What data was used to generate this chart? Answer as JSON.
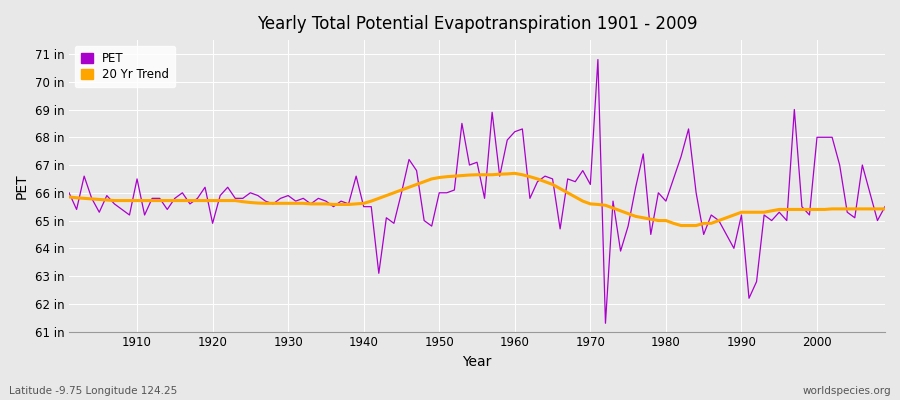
{
  "title": "Yearly Total Potential Evapotranspiration 1901 - 2009",
  "xlabel": "Year",
  "ylabel": "PET",
  "footnote_left": "Latitude -9.75 Longitude 124.25",
  "footnote_right": "worldspecies.org",
  "pet_color": "#AA00CC",
  "trend_color": "#FFA500",
  "bg_color": "#E8E8E8",
  "ylim": [
    61,
    71.5
  ],
  "yticks": [
    61,
    62,
    63,
    64,
    65,
    66,
    67,
    68,
    69,
    70,
    71
  ],
  "ytick_labels": [
    "61 in",
    "62 in",
    "63 in",
    "64 in",
    "65 in",
    "66 in",
    "67 in",
    "68 in",
    "69 in",
    "70 in",
    "71 in"
  ],
  "years": [
    1901,
    1902,
    1903,
    1904,
    1905,
    1906,
    1907,
    1908,
    1909,
    1910,
    1911,
    1912,
    1913,
    1914,
    1915,
    1916,
    1917,
    1918,
    1919,
    1920,
    1921,
    1922,
    1923,
    1924,
    1925,
    1926,
    1927,
    1928,
    1929,
    1930,
    1931,
    1932,
    1933,
    1934,
    1935,
    1936,
    1937,
    1938,
    1939,
    1940,
    1941,
    1942,
    1943,
    1944,
    1945,
    1946,
    1947,
    1948,
    1949,
    1950,
    1951,
    1952,
    1953,
    1954,
    1955,
    1956,
    1957,
    1958,
    1959,
    1960,
    1961,
    1962,
    1963,
    1964,
    1965,
    1966,
    1967,
    1968,
    1969,
    1970,
    1971,
    1972,
    1973,
    1974,
    1975,
    1976,
    1977,
    1978,
    1979,
    1980,
    1981,
    1982,
    1983,
    1984,
    1985,
    1986,
    1987,
    1988,
    1989,
    1990,
    1991,
    1992,
    1993,
    1994,
    1995,
    1996,
    1997,
    1998,
    1999,
    2000,
    2001,
    2002,
    2003,
    2004,
    2005,
    2006,
    2007,
    2008,
    2009
  ],
  "pet": [
    66.0,
    65.4,
    66.6,
    65.8,
    65.3,
    65.9,
    65.6,
    65.4,
    65.2,
    66.5,
    65.2,
    65.8,
    65.8,
    65.4,
    65.8,
    66.0,
    65.6,
    65.8,
    66.2,
    64.9,
    65.9,
    66.2,
    65.8,
    65.8,
    66.0,
    65.9,
    65.7,
    65.6,
    65.8,
    65.9,
    65.7,
    65.8,
    65.6,
    65.8,
    65.7,
    65.5,
    65.7,
    65.6,
    66.6,
    65.5,
    65.5,
    63.1,
    65.1,
    64.9,
    66.0,
    67.2,
    66.8,
    65.0,
    64.8,
    66.0,
    66.0,
    66.1,
    68.5,
    67.0,
    67.1,
    65.8,
    68.9,
    66.6,
    67.9,
    68.2,
    68.3,
    65.8,
    66.4,
    66.6,
    66.5,
    64.7,
    66.5,
    66.4,
    66.8,
    66.3,
    70.8,
    61.3,
    65.7,
    63.9,
    64.8,
    66.2,
    67.4,
    64.5,
    66.0,
    65.7,
    66.5,
    67.3,
    68.3,
    66.0,
    64.5,
    65.2,
    65.0,
    64.5,
    64.0,
    65.2,
    62.2,
    62.8,
    65.2,
    65.0,
    65.3,
    65.0,
    69.0,
    65.5,
    65.2,
    68.0,
    68.0,
    68.0,
    67.0,
    65.3,
    65.1,
    67.0,
    66.0,
    65.0,
    65.5
  ],
  "trend": [
    65.85,
    65.82,
    65.8,
    65.78,
    65.76,
    65.74,
    65.72,
    65.72,
    65.72,
    65.72,
    65.72,
    65.72,
    65.72,
    65.72,
    65.72,
    65.72,
    65.72,
    65.72,
    65.72,
    65.72,
    65.72,
    65.72,
    65.72,
    65.68,
    65.65,
    65.63,
    65.62,
    65.62,
    65.62,
    65.62,
    65.62,
    65.62,
    65.6,
    65.6,
    65.6,
    65.58,
    65.58,
    65.58,
    65.6,
    65.62,
    65.7,
    65.8,
    65.9,
    66.0,
    66.1,
    66.2,
    66.3,
    66.4,
    66.5,
    66.55,
    66.58,
    66.6,
    66.62,
    66.64,
    66.65,
    66.65,
    66.65,
    66.67,
    66.68,
    66.7,
    66.65,
    66.58,
    66.5,
    66.4,
    66.3,
    66.15,
    66.0,
    65.85,
    65.7,
    65.6,
    65.58,
    65.55,
    65.45,
    65.35,
    65.25,
    65.15,
    65.1,
    65.05,
    65.0,
    65.0,
    64.9,
    64.82,
    64.82,
    64.82,
    64.9,
    64.9,
    65.0,
    65.1,
    65.2,
    65.3,
    65.3,
    65.3,
    65.3,
    65.35,
    65.4,
    65.4,
    65.4,
    65.4,
    65.4,
    65.4,
    65.4,
    65.42,
    65.42,
    65.42,
    65.42,
    65.42,
    65.42,
    65.42,
    65.42
  ]
}
